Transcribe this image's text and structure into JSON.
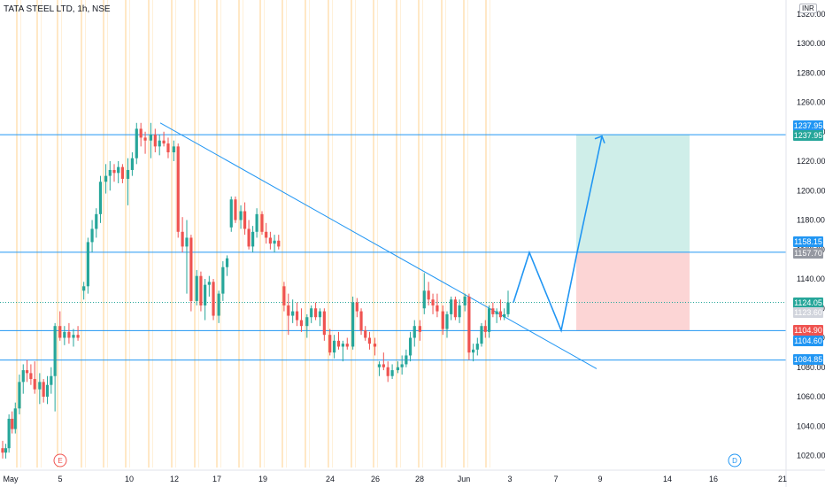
{
  "header": {
    "title": "TATA STEEL LTD, 1h, NSE",
    "currency": "INR"
  },
  "colors": {
    "up": "#26a69a",
    "down": "#ef5350",
    "line": "#2196f3",
    "session": "#ffcc80",
    "teal_zone": "#cfeee9",
    "red_zone": "#fcd5d5",
    "current_line": "#26a69a"
  },
  "chart_data": {
    "type": "candlestick",
    "symbol": "TATA STEEL LTD",
    "interval": "1h",
    "exchange": "NSE",
    "y_axis": {
      "min": 1010,
      "max": 1325,
      "ticks": [
        1020,
        1040,
        1060,
        1080,
        1100,
        1120,
        1140,
        1160,
        1180,
        1200,
        1220,
        1240,
        1260,
        1280,
        1300,
        1320
      ]
    },
    "x_axis": {
      "labels": [
        "May",
        "5",
        "10",
        "12",
        "17",
        "19",
        "24",
        "26",
        "28",
        "Jun",
        "3",
        "7",
        "9",
        "14",
        "16",
        "21"
      ]
    },
    "event_markers": [
      "E",
      "D"
    ],
    "horizontal_levels": [
      1237.95,
      1158.15,
      1104.9,
      1084.85
    ],
    "price_labels": [
      {
        "text": "1237.95",
        "color": "#2196f3"
      },
      {
        "text": "1237.95",
        "color": "#26a69a"
      },
      {
        "text": "1158.15",
        "color": "#2196f3"
      },
      {
        "text": "1157.70",
        "color": "#9598a1"
      },
      {
        "text": "1124.05",
        "color": "#26a69a"
      },
      {
        "text": "1123.60",
        "color": "#d1d4dc"
      },
      {
        "text": "1104.90",
        "color": "#ef5350"
      },
      {
        "text": "1104.60",
        "color": "#2196f3"
      },
      {
        "text": "1084.85",
        "color": "#2196f3"
      }
    ],
    "trendline": {
      "from": 1246,
      "to": 1079
    },
    "position": {
      "entry": 1157.7,
      "target": 1237.95,
      "stop": 1104.9
    },
    "projection": [
      1124,
      1158,
      1105,
      1158,
      1237
    ],
    "last_close": 1124.05,
    "candles": [
      [
        1025,
        1030,
        1018,
        1022
      ],
      [
        1022,
        1028,
        1018,
        1025
      ],
      [
        1025,
        1048,
        1022,
        1045
      ],
      [
        1045,
        1050,
        1035,
        1038
      ],
      [
        1038,
        1056,
        1035,
        1052
      ],
      [
        1052,
        1075,
        1048,
        1070
      ],
      [
        1070,
        1082,
        1062,
        1078
      ],
      [
        1078,
        1085,
        1070,
        1076
      ],
      [
        1076,
        1082,
        1068,
        1072
      ],
      [
        1072,
        1084,
        1062,
        1065
      ],
      [
        1065,
        1076,
        1055,
        1070
      ],
      [
        1070,
        1072,
        1056,
        1060
      ],
      [
        1060,
        1074,
        1055,
        1068
      ],
      [
        1068,
        1080,
        1062,
        1074
      ],
      [
        1074,
        1110,
        1050,
        1108
      ],
      [
        1108,
        1118,
        1098,
        1100
      ],
      [
        1100,
        1108,
        1095,
        1104
      ],
      [
        1104,
        1110,
        1096,
        1100
      ],
      [
        1100,
        1106,
        1094,
        1102
      ],
      [
        1102,
        1108,
        1098,
        1100
      ],
      [
        1132,
        1138,
        1126,
        1135
      ],
      [
        1135,
        1168,
        1130,
        1165
      ],
      [
        1165,
        1180,
        1158,
        1174
      ],
      [
        1174,
        1188,
        1168,
        1184
      ],
      [
        1184,
        1210,
        1178,
        1206
      ],
      [
        1206,
        1218,
        1198,
        1210
      ],
      [
        1210,
        1220,
        1200,
        1214
      ],
      [
        1214,
        1218,
        1206,
        1212
      ],
      [
        1212,
        1220,
        1205,
        1216
      ],
      [
        1216,
        1218,
        1205,
        1208
      ],
      [
        1208,
        1222,
        1190,
        1214
      ],
      [
        1214,
        1226,
        1210,
        1222
      ],
      [
        1222,
        1246,
        1218,
        1242
      ],
      [
        1242,
        1246,
        1230,
        1236
      ],
      [
        1236,
        1240,
        1225,
        1234
      ],
      [
        1234,
        1246,
        1222,
        1238
      ],
      [
        1238,
        1242,
        1226,
        1230
      ],
      [
        1230,
        1238,
        1224,
        1234
      ],
      [
        1234,
        1240,
        1230,
        1232
      ],
      [
        1232,
        1236,
        1222,
        1226
      ],
      [
        1226,
        1234,
        1220,
        1230
      ],
      [
        1230,
        1232,
        1168,
        1172
      ],
      [
        1172,
        1182,
        1158,
        1162
      ],
      [
        1162,
        1180,
        1130,
        1168
      ],
      [
        1168,
        1170,
        1118,
        1125
      ],
      [
        1125,
        1146,
        1122,
        1142
      ],
      [
        1142,
        1145,
        1118,
        1122
      ],
      [
        1122,
        1140,
        1112,
        1136
      ],
      [
        1136,
        1142,
        1128,
        1138
      ],
      [
        1138,
        1140,
        1112,
        1115
      ],
      [
        1115,
        1132,
        1110,
        1130
      ],
      [
        1130,
        1152,
        1125,
        1148
      ],
      [
        1148,
        1156,
        1142,
        1154
      ],
      [
        1175,
        1196,
        1172,
        1194
      ],
      [
        1194,
        1196,
        1178,
        1180
      ],
      [
        1180,
        1190,
        1174,
        1186
      ],
      [
        1186,
        1192,
        1170,
        1174
      ],
      [
        1174,
        1180,
        1160,
        1162
      ],
      [
        1162,
        1176,
        1158,
        1172
      ],
      [
        1172,
        1188,
        1168,
        1184
      ],
      [
        1184,
        1186,
        1170,
        1172
      ],
      [
        1172,
        1178,
        1164,
        1168
      ],
      [
        1168,
        1172,
        1160,
        1164
      ],
      [
        1164,
        1170,
        1158,
        1166
      ],
      [
        1166,
        1170,
        1160,
        1162
      ],
      [
        1135,
        1138,
        1118,
        1122
      ],
      [
        1122,
        1130,
        1102,
        1115
      ],
      [
        1115,
        1126,
        1110,
        1118
      ],
      [
        1118,
        1124,
        1108,
        1112
      ],
      [
        1112,
        1120,
        1104,
        1108
      ],
      [
        1108,
        1116,
        1100,
        1114
      ],
      [
        1114,
        1122,
        1110,
        1120
      ],
      [
        1120,
        1124,
        1112,
        1114
      ],
      [
        1114,
        1120,
        1108,
        1118
      ],
      [
        1118,
        1120,
        1098,
        1102
      ],
      [
        1102,
        1106,
        1088,
        1090
      ],
      [
        1090,
        1102,
        1086,
        1098
      ],
      [
        1098,
        1104,
        1092,
        1094
      ],
      [
        1094,
        1098,
        1084,
        1096
      ],
      [
        1096,
        1100,
        1092,
        1094
      ],
      [
        1094,
        1128,
        1092,
        1124
      ],
      [
        1124,
        1127,
        1114,
        1118
      ],
      [
        1118,
        1120,
        1102,
        1105
      ],
      [
        1105,
        1108,
        1098,
        1100
      ],
      [
        1100,
        1104,
        1092,
        1096
      ],
      [
        1096,
        1100,
        1088,
        1094
      ],
      [
        1080,
        1084,
        1074,
        1082
      ],
      [
        1082,
        1090,
        1078,
        1080
      ],
      [
        1080,
        1084,
        1070,
        1074
      ],
      [
        1074,
        1082,
        1072,
        1078
      ],
      [
        1078,
        1084,
        1076,
        1080
      ],
      [
        1080,
        1088,
        1075,
        1082
      ],
      [
        1082,
        1092,
        1080,
        1088
      ],
      [
        1088,
        1104,
        1084,
        1100
      ],
      [
        1100,
        1112,
        1094,
        1108
      ],
      [
        1108,
        1112,
        1098,
        1104
      ],
      [
        1120,
        1144,
        1116,
        1132
      ],
      [
        1132,
        1138,
        1122,
        1126
      ],
      [
        1126,
        1130,
        1116,
        1122
      ],
      [
        1122,
        1130,
        1114,
        1118
      ],
      [
        1118,
        1122,
        1102,
        1106
      ],
      [
        1106,
        1118,
        1100,
        1116
      ],
      [
        1116,
        1128,
        1112,
        1126
      ],
      [
        1126,
        1128,
        1112,
        1114
      ],
      [
        1114,
        1126,
        1110,
        1122
      ],
      [
        1122,
        1130,
        1118,
        1128
      ],
      [
        1128,
        1130,
        1085,
        1090
      ],
      [
        1090,
        1096,
        1084,
        1092
      ],
      [
        1092,
        1100,
        1088,
        1096
      ],
      [
        1096,
        1110,
        1094,
        1108
      ],
      [
        1108,
        1112,
        1100,
        1104
      ],
      [
        1104,
        1122,
        1100,
        1120
      ],
      [
        1120,
        1124,
        1114,
        1116
      ],
      [
        1116,
        1120,
        1110,
        1118
      ],
      [
        1118,
        1126,
        1112,
        1114
      ],
      [
        1114,
        1120,
        1112,
        1116
      ],
      [
        1116,
        1132,
        1114,
        1124
      ]
    ]
  }
}
